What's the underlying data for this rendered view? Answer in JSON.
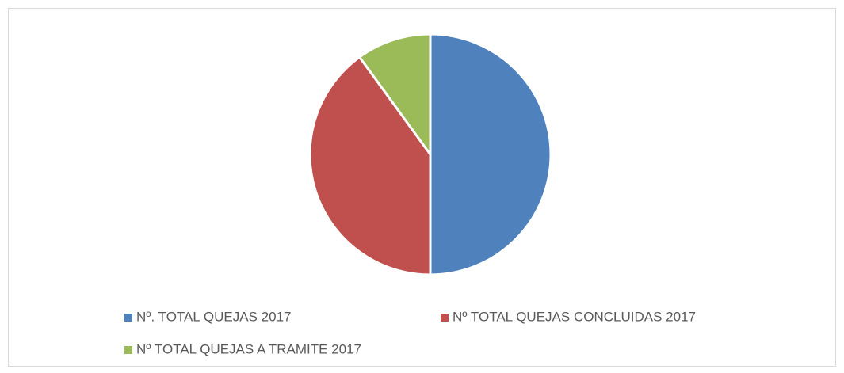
{
  "chart_data": {
    "type": "pie",
    "categories": [
      "Nº. TOTAL QUEJAS 2017",
      "Nº TOTAL QUEJAS CONCLUIDAS 2017",
      "Nº TOTAL QUEJAS A TRAMITE 2017"
    ],
    "values": [
      50,
      40,
      10
    ],
    "colors": [
      "#4f81bd",
      "#c0504d",
      "#9bbb59"
    ],
    "legend": "bottom"
  }
}
